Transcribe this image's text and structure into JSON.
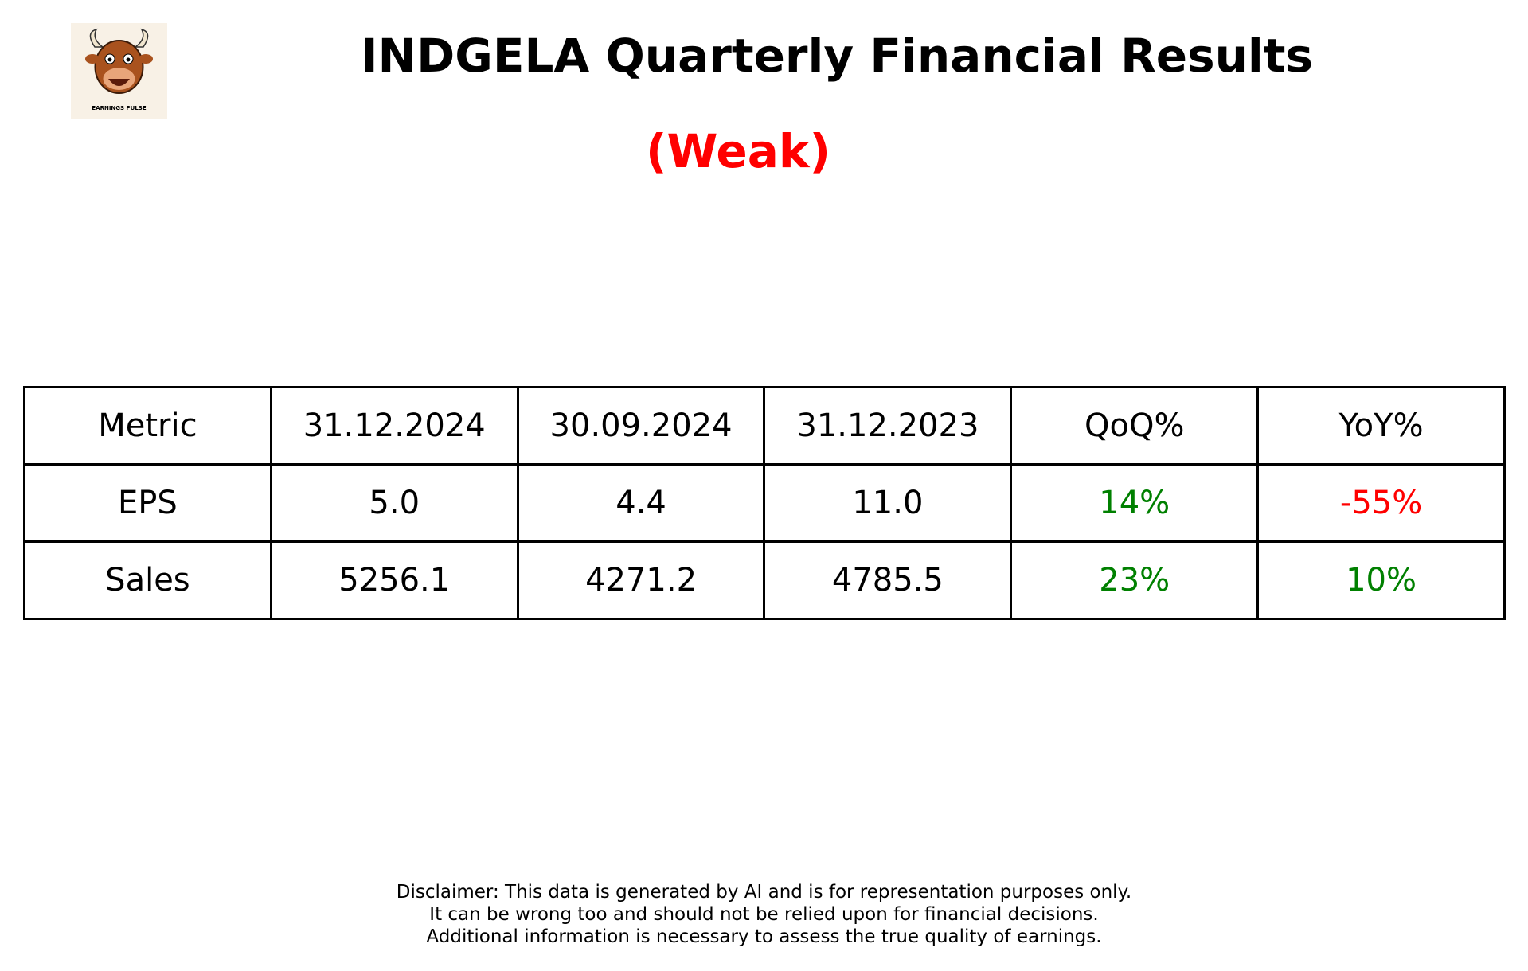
{
  "header": {
    "title": "INDGELA Quarterly Financial Results",
    "verdict": "(Weak)",
    "verdict_color": "#ff0000",
    "logo_text": "EARNINGS PULSE"
  },
  "table": {
    "columns": [
      "Metric",
      "31.12.2024",
      "30.09.2024",
      "31.12.2023",
      "QoQ%",
      "YoY%"
    ],
    "rows": [
      [
        "EPS",
        "5.0",
        "4.4",
        "11.0",
        "14%",
        "-55%"
      ],
      [
        "Sales",
        "5256.1",
        "4271.2",
        "4785.5",
        "23%",
        "10%"
      ]
    ],
    "row_colors": [
      [
        "#000000",
        "#000000",
        "#000000",
        "#000000",
        "#008000",
        "#ff0000"
      ],
      [
        "#000000",
        "#000000",
        "#000000",
        "#000000",
        "#008000",
        "#008000"
      ]
    ]
  },
  "disclaimer": [
    "Disclaimer: This data is generated by AI and is for representation purposes only.",
    "It can be wrong too and should not be relied upon for financial decisions.",
    "Additional information is necessary to assess the true quality of earnings."
  ]
}
